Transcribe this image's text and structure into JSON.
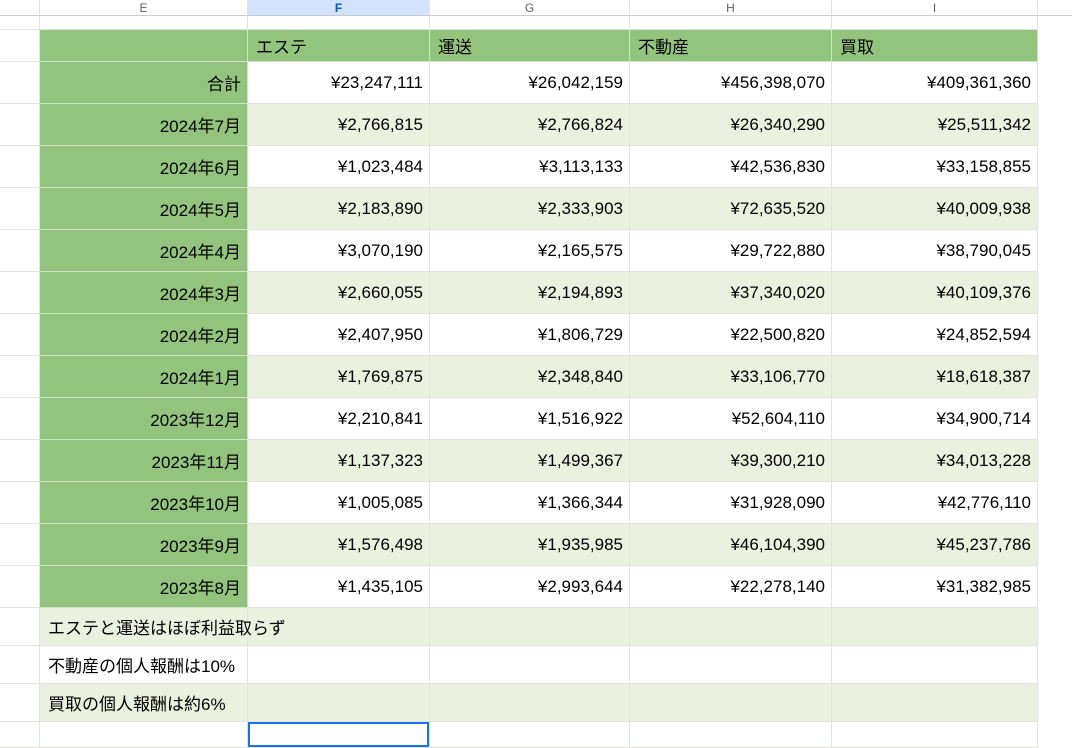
{
  "columns": {
    "letters": [
      "E",
      "F",
      "G",
      "H",
      "I"
    ],
    "selected": "F"
  },
  "table": {
    "header": {
      "labels": [
        "エステ",
        "運送",
        "不動産",
        "買取"
      ]
    },
    "total": {
      "label": "合計",
      "values": [
        "¥23,247,111",
        "¥26,042,159",
        "¥456,398,070",
        "¥409,361,360"
      ]
    },
    "month_rows": [
      {
        "label": "2024年7月",
        "values": [
          "¥2,766,815",
          "¥2,766,824",
          "¥26,340,290",
          "¥25,511,342"
        ]
      },
      {
        "label": "2024年6月",
        "values": [
          "¥1,023,484",
          "¥3,113,133",
          "¥42,536,830",
          "¥33,158,855"
        ]
      },
      {
        "label": "2024年5月",
        "values": [
          "¥2,183,890",
          "¥2,333,903",
          "¥72,635,520",
          "¥40,009,938"
        ]
      },
      {
        "label": "2024年4月",
        "values": [
          "¥3,070,190",
          "¥2,165,575",
          "¥29,722,880",
          "¥38,790,045"
        ]
      },
      {
        "label": "2024年3月",
        "values": [
          "¥2,660,055",
          "¥2,194,893",
          "¥37,340,020",
          "¥40,109,376"
        ]
      },
      {
        "label": "2024年2月",
        "values": [
          "¥2,407,950",
          "¥1,806,729",
          "¥22,500,820",
          "¥24,852,594"
        ]
      },
      {
        "label": "2024年1月",
        "values": [
          "¥1,769,875",
          "¥2,348,840",
          "¥33,106,770",
          "¥18,618,387"
        ]
      },
      {
        "label": "2023年12月",
        "values": [
          "¥2,210,841",
          "¥1,516,922",
          "¥52,604,110",
          "¥34,900,714"
        ]
      },
      {
        "label": "2023年11月",
        "values": [
          "¥1,137,323",
          "¥1,499,367",
          "¥39,300,210",
          "¥34,013,228"
        ]
      },
      {
        "label": "2023年10月",
        "values": [
          "¥1,005,085",
          "¥1,366,344",
          "¥31,928,090",
          "¥42,776,110"
        ]
      },
      {
        "label": "2023年9月",
        "values": [
          "¥1,576,498",
          "¥1,935,985",
          "¥46,104,390",
          "¥45,237,786"
        ]
      },
      {
        "label": "2023年8月",
        "values": [
          "¥1,435,105",
          "¥2,993,644",
          "¥22,278,140",
          "¥31,382,985"
        ]
      }
    ],
    "notes": [
      "エステと運送はほぼ利益取らず",
      "不動産の個人報酬は10%",
      "買取の個人報酬は約6%"
    ]
  },
  "colors": {
    "header_green": "#93c47d",
    "band_green": "#eaf1de",
    "selected_column_bg": "#d3e3fd",
    "selection_border": "#1a73e8"
  }
}
